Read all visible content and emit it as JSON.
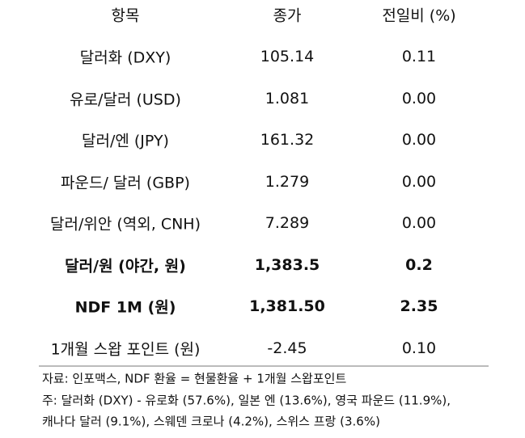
{
  "table": {
    "header": [
      "항목",
      "종가",
      "전일비 (%)"
    ],
    "rows": [
      [
        "달러화 (DXY)",
        "105.14",
        "0.11"
      ],
      [
        "유로/달러 (USD)",
        "1.081",
        "0.00"
      ],
      [
        "달러/엔 (JPY)",
        "161.32",
        "0.00"
      ],
      [
        "파운드/ 달러 (GBP)",
        "1.279",
        "0.00"
      ],
      [
        "달러/위안 (역외, CNH)",
        "7.289",
        "0.00"
      ],
      [
        "달러/원 (야간, 원)",
        "1,383.5",
        "0.2"
      ],
      [
        "NDF 1M (원)",
        "1,381.50",
        "2.35"
      ],
      [
        "1개월 스왑 포인트 (원)",
        "-2.45",
        "0.10"
      ]
    ]
  },
  "notes": [
    "자료: 인포맥스, NDF 환율 = 현물환율 + 1개월 스왑포인트",
    "주: 달러화 (DXY) - 유로화 (57.6%), 일본 엔 (13.6%), 영국 파운드 (11.9%),",
    "캐나다 달러 (9.1%), 스웨덴 크로나 (4.2%), 스위스 프랑 (3.6%)"
  ]
}
